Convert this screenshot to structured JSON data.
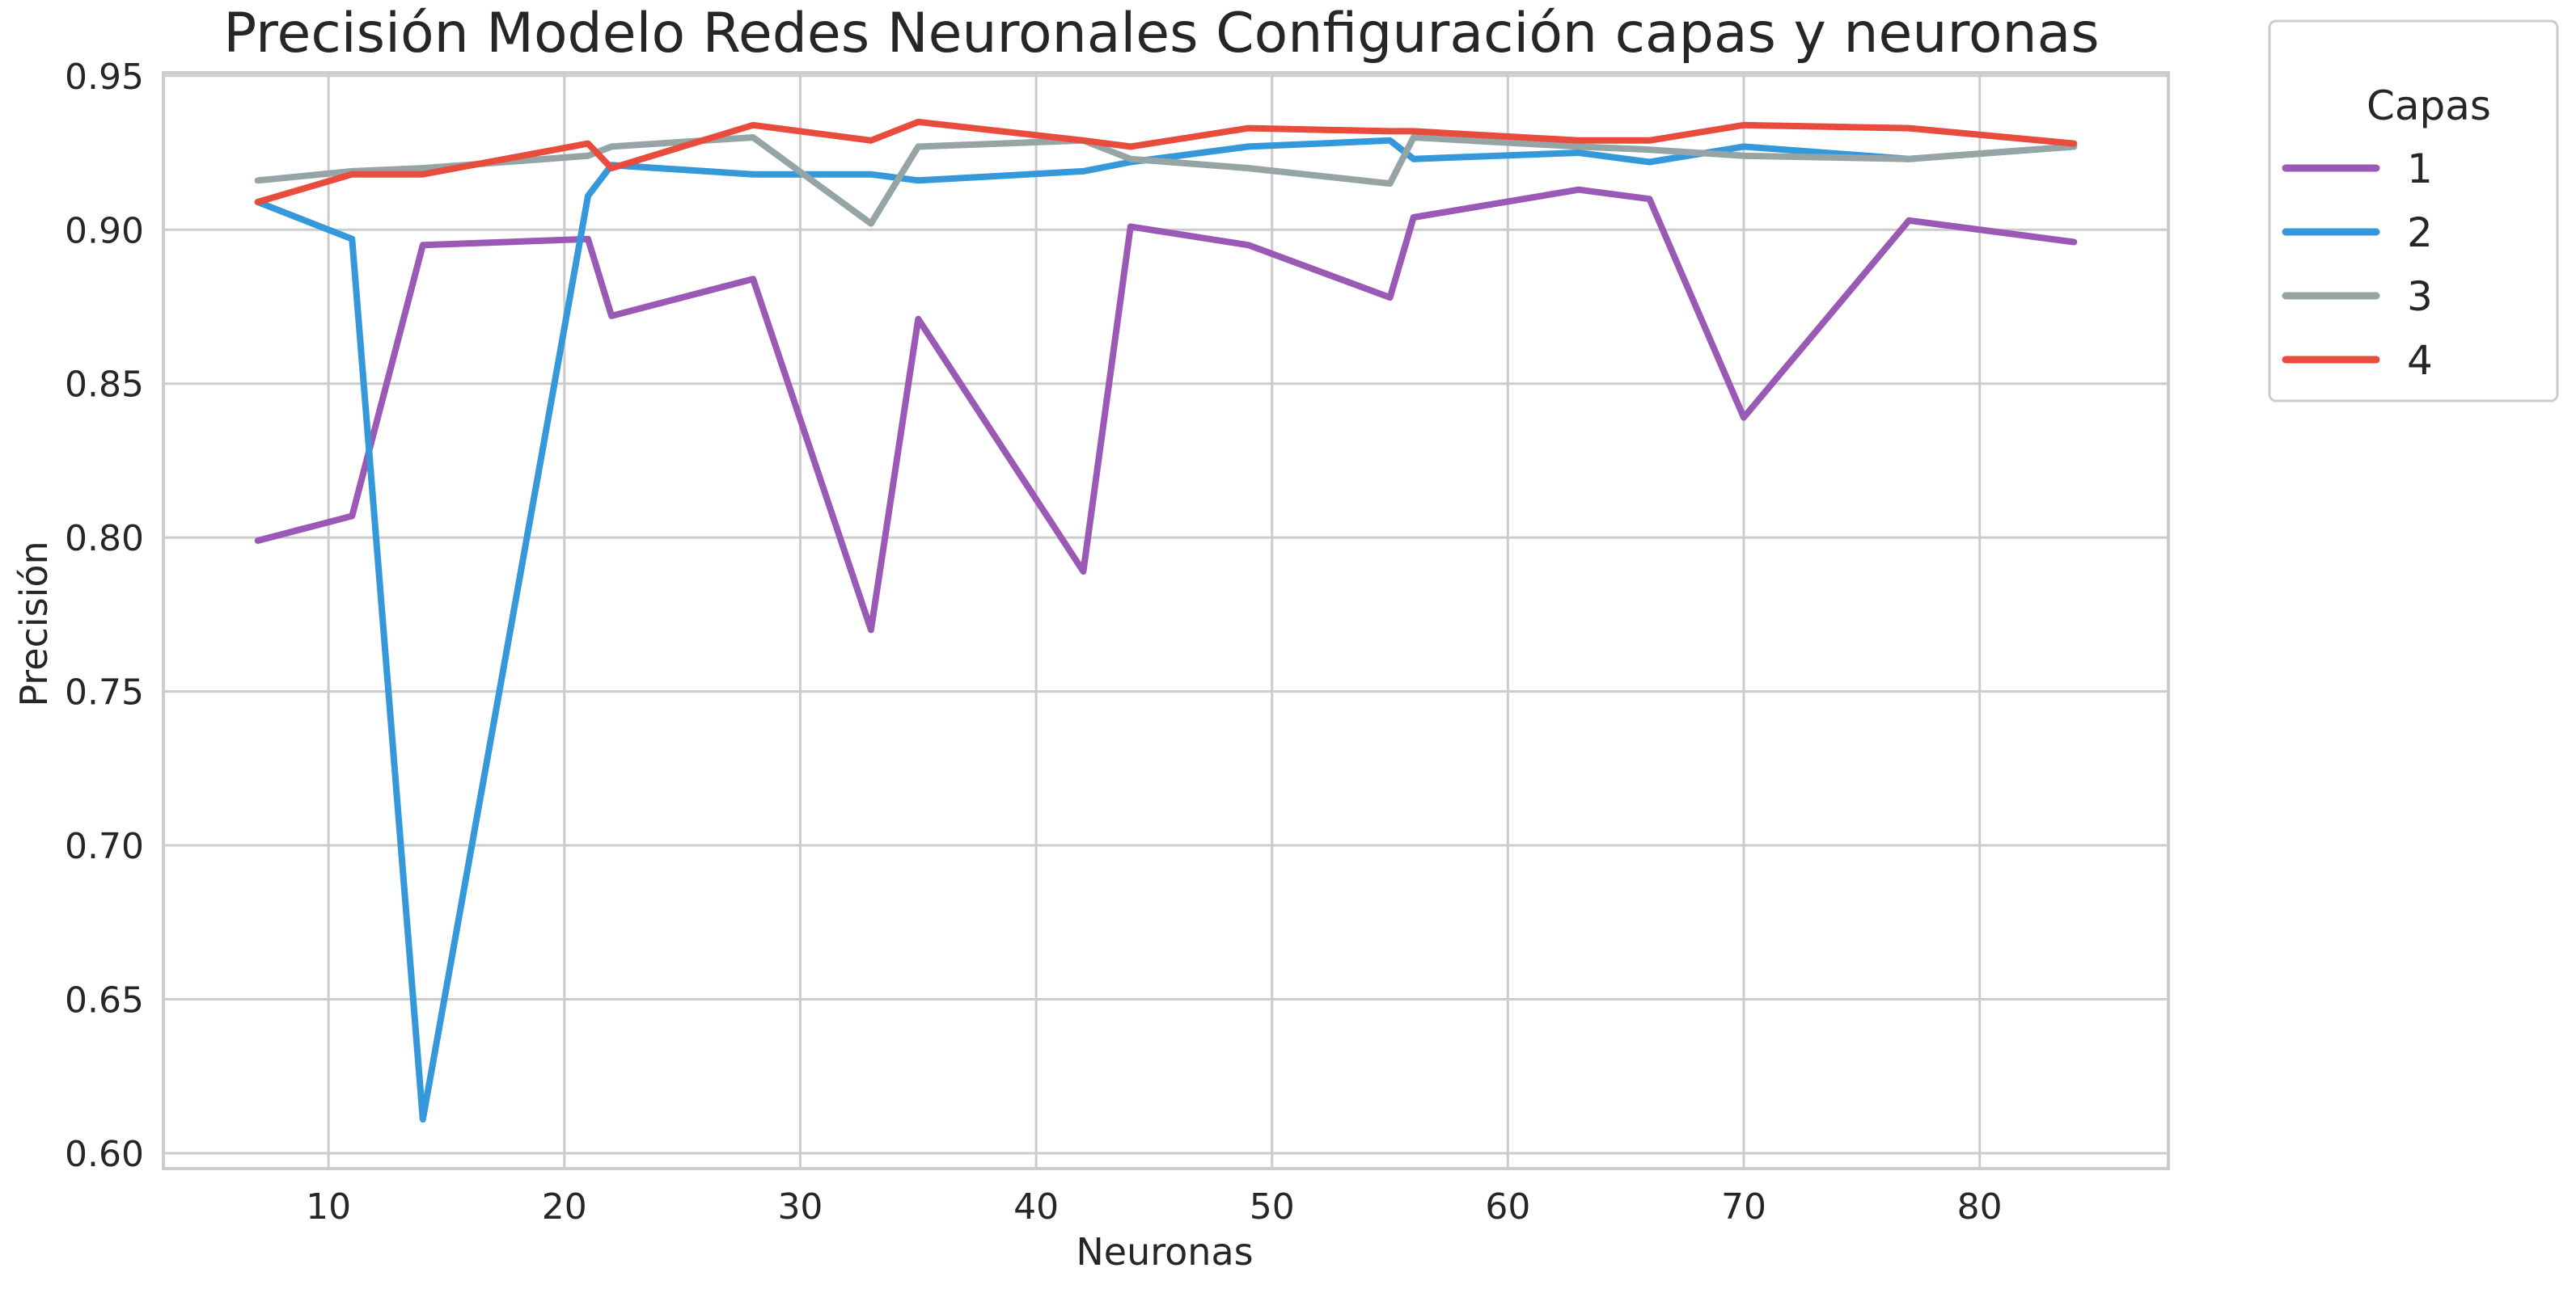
{
  "chart_data": {
    "type": "line",
    "title": "Precisión Modelo Redes Neuronales Configuración capas y neuronas",
    "xlabel": "Neuronas",
    "ylabel": "Precisión",
    "xlim": [
      3,
      88
    ],
    "ylim": [
      0.595,
      0.951
    ],
    "xticks": [
      10,
      20,
      30,
      40,
      50,
      60,
      70,
      80
    ],
    "yticks": [
      0.6,
      0.65,
      0.7,
      0.75,
      0.8,
      0.85,
      0.9,
      0.95
    ],
    "xtick_labels": [
      "10",
      "20",
      "30",
      "40",
      "50",
      "60",
      "70",
      "80"
    ],
    "ytick_labels": [
      "0.60",
      "0.65",
      "0.70",
      "0.75",
      "0.80",
      "0.85",
      "0.90",
      "0.95"
    ],
    "grid": true,
    "legend": {
      "title": "Capas",
      "placement": "outside-top-right"
    },
    "series": [
      {
        "name": "1",
        "color": "#9b59b6",
        "x": [
          7,
          11,
          14,
          21,
          22,
          28,
          33,
          35,
          42,
          44,
          49,
          55,
          56,
          63,
          66,
          70,
          77,
          84
        ],
        "y": [
          0.799,
          0.807,
          0.895,
          0.897,
          0.872,
          0.884,
          0.77,
          0.871,
          0.789,
          0.901,
          0.895,
          0.878,
          0.904,
          0.913,
          0.91,
          0.839,
          0.903,
          0.896
        ]
      },
      {
        "name": "2",
        "color": "#3498db",
        "x": [
          7,
          11,
          14,
          21,
          22,
          28,
          33,
          35,
          42,
          44,
          49,
          55,
          56,
          63,
          66,
          70,
          77,
          84
        ],
        "y": [
          0.909,
          0.897,
          0.611,
          0.911,
          0.921,
          0.918,
          0.918,
          0.916,
          0.919,
          0.922,
          0.927,
          0.929,
          0.923,
          0.925,
          0.922,
          0.927,
          0.923,
          0.927
        ]
      },
      {
        "name": "3",
        "color": "#95a5a6",
        "x": [
          7,
          11,
          14,
          21,
          22,
          28,
          33,
          35,
          42,
          44,
          49,
          55,
          56,
          63,
          66,
          70,
          77,
          84
        ],
        "y": [
          0.916,
          0.919,
          0.92,
          0.924,
          0.927,
          0.93,
          0.902,
          0.927,
          0.929,
          0.923,
          0.92,
          0.915,
          0.93,
          0.927,
          0.926,
          0.924,
          0.923,
          0.927
        ]
      },
      {
        "name": "4",
        "color": "#e74c3c",
        "x": [
          7,
          11,
          14,
          21,
          22,
          28,
          33,
          35,
          42,
          44,
          49,
          55,
          56,
          63,
          66,
          70,
          77,
          84
        ],
        "y": [
          0.909,
          0.918,
          0.918,
          0.928,
          0.92,
          0.934,
          0.929,
          0.935,
          0.929,
          0.927,
          0.933,
          0.932,
          0.932,
          0.929,
          0.929,
          0.934,
          0.933,
          0.928
        ]
      }
    ]
  }
}
